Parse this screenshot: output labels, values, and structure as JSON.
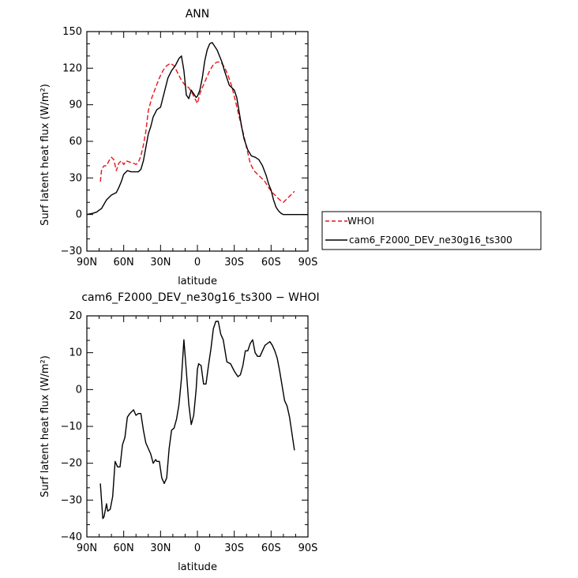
{
  "chart_data": [
    {
      "type": "line",
      "title": "ANN",
      "xlabel": "latitude",
      "ylabel": "Surf latent heat flux (W/m²)",
      "xlim": [
        90,
        -90
      ],
      "ylim": [
        -30,
        150
      ],
      "xticks": [
        90,
        60,
        30,
        0,
        -30,
        -60,
        -90
      ],
      "xtick_labels": [
        "90N",
        "60N",
        "30N",
        "0",
        "30S",
        "60S",
        "90S"
      ],
      "yticks": [
        -30,
        0,
        30,
        60,
        90,
        120,
        150
      ],
      "ytick_labels": [
        "−30",
        "0",
        "30",
        "60",
        "90",
        "120",
        "150"
      ],
      "legend_position": "right",
      "series": [
        {
          "name": "WHOI",
          "color": "#e8141c",
          "dash": "dashed",
          "x": [
            79,
            78,
            76,
            74,
            72,
            70,
            68,
            66,
            64,
            62,
            60,
            58,
            55,
            52,
            50,
            48,
            46,
            44,
            42,
            40,
            37,
            34,
            31,
            28,
            25,
            22,
            19,
            16,
            13,
            10,
            7,
            4,
            2,
            0,
            -2,
            -4,
            -7,
            -10,
            -13,
            -16,
            -19,
            -22,
            -25,
            -28,
            -31,
            -34,
            -37,
            -40,
            -43,
            -46,
            -48,
            -50,
            -52,
            -55,
            -58,
            -61,
            -64,
            -67,
            -70,
            -72,
            -75,
            -77,
            -79
          ],
          "y": [
            27,
            37,
            40,
            40,
            44,
            47,
            45,
            36,
            42,
            44,
            41,
            44,
            43,
            42,
            41,
            43,
            48,
            57,
            68,
            85,
            96,
            104,
            112,
            118,
            122,
            124,
            122,
            116,
            110,
            106,
            104,
            99,
            95,
            91,
            99,
            104,
            111,
            118,
            123,
            125,
            125,
            121,
            114,
            105,
            93,
            80,
            68,
            55,
            42,
            36,
            34,
            32,
            30,
            27,
            22,
            18,
            15,
            12,
            10,
            12,
            15,
            17,
            19
          ]
        },
        {
          "name": "cam6_F2000_DEV_ne30g16_ts300",
          "color": "#000000",
          "dash": "solid",
          "x": [
            90,
            85,
            82,
            78,
            74,
            70,
            66,
            64,
            62,
            60,
            57,
            54,
            51,
            48,
            46,
            44,
            42,
            40,
            38,
            36,
            33,
            30,
            27,
            24,
            21,
            18,
            15,
            13,
            11,
            9,
            7,
            5,
            3,
            1,
            0,
            -2,
            -4,
            -6,
            -8,
            -10,
            -12,
            -14,
            -16,
            -18,
            -20,
            -22,
            -24,
            -26,
            -28,
            -30,
            -32,
            -34,
            -36,
            -38,
            -41,
            -44,
            -47,
            -50,
            -53,
            -56,
            -58,
            -60,
            -62,
            -64,
            -66,
            -68,
            -70,
            -72,
            -75,
            -78,
            -80,
            -82,
            -84,
            -86,
            -88,
            -90
          ],
          "y": [
            0,
            1,
            2,
            5,
            12,
            16,
            18,
            22,
            27,
            33,
            36,
            35,
            35,
            35,
            37,
            44,
            55,
            66,
            72,
            80,
            86,
            88,
            100,
            112,
            118,
            122,
            128,
            130,
            118,
            98,
            95,
            102,
            99,
            96,
            97,
            102,
            112,
            126,
            135,
            140,
            141,
            138,
            135,
            130,
            125,
            118,
            112,
            106,
            104,
            102,
            96,
            84,
            72,
            62,
            53,
            48,
            47,
            45,
            40,
            32,
            25,
            20,
            12,
            6,
            3,
            1,
            0,
            0,
            0,
            0,
            0,
            0,
            0,
            0,
            0,
            0
          ]
        }
      ]
    },
    {
      "type": "line",
      "title": "cam6_F2000_DEV_ne30g16_ts300 − WHOI",
      "xlabel": "latitude",
      "ylabel": "Surf latent heat flux (W/m²)",
      "xlim": [
        90,
        -90
      ],
      "ylim": [
        -40,
        20
      ],
      "xticks": [
        90,
        60,
        30,
        0,
        -30,
        -60,
        -90
      ],
      "xtick_labels": [
        "90N",
        "60N",
        "30N",
        "0",
        "30S",
        "60S",
        "90S"
      ],
      "yticks": [
        -40,
        -30,
        -20,
        -10,
        0,
        10,
        20
      ],
      "ytick_labels": [
        "−40",
        "−30",
        "−20",
        "−10",
        "0",
        "10",
        "20"
      ],
      "series": [
        {
          "color": "#000000",
          "dash": "solid",
          "x": [
            79,
            77,
            76,
            74,
            73,
            71,
            69,
            67,
            65,
            63,
            61,
            59,
            57,
            55,
            52,
            50,
            48,
            46,
            44,
            42,
            40,
            38,
            36,
            34,
            33,
            31,
            29,
            27,
            25,
            23,
            21,
            19,
            17,
            15,
            13,
            11,
            9,
            7,
            5,
            3,
            1,
            0,
            -1,
            -3,
            -5,
            -7,
            -9,
            -11,
            -13,
            -15,
            -17,
            -19,
            -21,
            -24,
            -27,
            -30,
            -33,
            -35,
            -37,
            -39,
            -41,
            -43,
            -45,
            -47,
            -49,
            -51,
            -53,
            -55,
            -57,
            -59,
            -61,
            -63,
            -65,
            -67,
            -69,
            -71,
            -73,
            -75,
            -77,
            -79
          ],
          "y": [
            -25.5,
            -35,
            -34.5,
            -31,
            -33,
            -32.5,
            -29,
            -19.5,
            -21,
            -21,
            -15,
            -13,
            -7.5,
            -6.5,
            -5.5,
            -7,
            -6.5,
            -6.5,
            -11,
            -14.5,
            -16,
            -17.5,
            -20,
            -19,
            -19.5,
            -19.5,
            -24,
            -25.5,
            -24,
            -16,
            -11,
            -10.5,
            -8,
            -4,
            3,
            13.5,
            5,
            -4,
            -9.5,
            -7,
            0,
            5.5,
            7,
            6.5,
            1.5,
            1.5,
            6.5,
            11,
            16.5,
            18.5,
            18.5,
            15,
            13.5,
            7.5,
            7,
            5,
            3.5,
            4,
            6.5,
            10.5,
            10.5,
            12.5,
            13.5,
            10,
            9,
            9,
            10.5,
            12,
            12.5,
            13,
            12,
            10.5,
            8.5,
            5,
            1,
            -3,
            -4.5,
            -7.5,
            -12,
            -16.5
          ]
        }
      ]
    }
  ]
}
